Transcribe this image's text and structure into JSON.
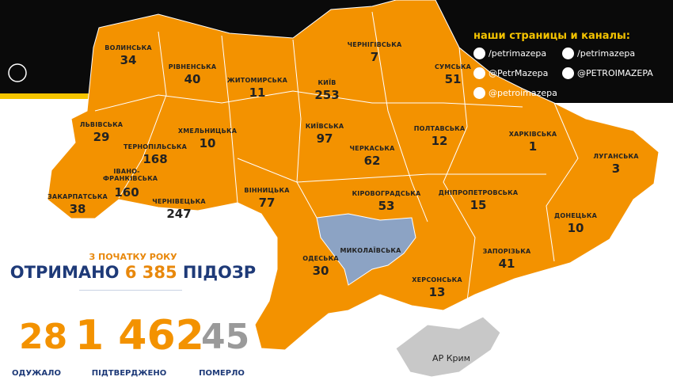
{
  "header": {
    "channels_title": "наши страницы и каналы:",
    "links": [
      "/petrimazepa",
      "/petrimazepa",
      "@PetrMazepa",
      "@PETROIMAZEPA",
      "@petroimazepa"
    ]
  },
  "summary": {
    "subtitle": "З ПОЧАТКУ РОКУ",
    "received": "ОТРИМАНО",
    "count": "6 385",
    "suspicions": "ПІДОЗР",
    "stats": [
      {
        "value": "28",
        "label": "ОДУЖАЛО"
      },
      {
        "value": "1 462",
        "label": "ПІДТВЕРДЖЕНО"
      },
      {
        "value": "45",
        "label": "ПОМЕРЛО"
      }
    ]
  },
  "regions": [
    {
      "name": "ВОЛИНСЬКА",
      "value": 34
    },
    {
      "name": "РІВНЕНСЬКА",
      "value": 40
    },
    {
      "name": "ЖИТОМИРСЬКА",
      "value": 11
    },
    {
      "name": "КИЇВ",
      "value": 253
    },
    {
      "name": "ЧЕРНІГІВСЬКА",
      "value": 7
    },
    {
      "name": "СУМСЬКА",
      "value": 51
    },
    {
      "name": "ЛЬВІВСЬКА",
      "value": 29
    },
    {
      "name": "ХМЕЛЬНИЦЬКА",
      "value": 10
    },
    {
      "name": "КИЇВСЬКА",
      "value": 97
    },
    {
      "name": "ПОЛТАВСЬКА",
      "value": 12
    },
    {
      "name": "ХАРКІВСЬКА",
      "value": 1
    },
    {
      "name": "ЛУГАНСЬКА",
      "value": 3
    },
    {
      "name": "ТЕРНОПІЛЬСЬКА",
      "value": 168
    },
    {
      "name": "ЧЕРКАСЬКА",
      "value": 62
    },
    {
      "name": "ІВАНО-ФРАНКІВСЬКА",
      "value": 160
    },
    {
      "name": "ВІННИЦЬКА",
      "value": 77
    },
    {
      "name": "ЗАКАРПАТСЬКА",
      "value": 38
    },
    {
      "name": "ЧЕРНІВЕЦЬКА",
      "value": 247
    },
    {
      "name": "КІРОВОГРАДСЬКА",
      "value": 53
    },
    {
      "name": "ДНІПРОПЕТРОВСЬКА",
      "value": 15
    },
    {
      "name": "ДОНЕЦЬКА",
      "value": 10
    },
    {
      "name": "МИКОЛАЇВСЬКА",
      "value": null
    },
    {
      "name": "ОДЕСЬКА",
      "value": 30
    },
    {
      "name": "ЗАПОРІЗЬКА",
      "value": 41
    },
    {
      "name": "ХЕРСОНСЬКА",
      "value": 13
    }
  ],
  "crimea": "АР Крим"
}
